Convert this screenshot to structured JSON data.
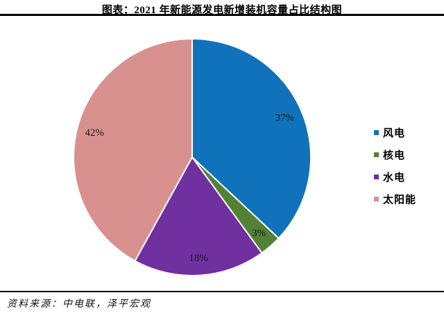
{
  "page": {
    "title": "图表：2021 年新能源发电新增装机容量占比结构图",
    "source": "资料来源：中电联，泽平宏观",
    "background": "#ffffff",
    "rule_color": "#000000"
  },
  "chart_data": {
    "type": "pie",
    "title": "图表：2021 年新能源发电新增装机容量占比结构图",
    "slices": [
      {
        "label": "风电",
        "value": 37,
        "percent_label": "37%",
        "color": "#1072BA"
      },
      {
        "label": "核电",
        "value": 3,
        "percent_label": "3%",
        "color": "#538135"
      },
      {
        "label": "水电",
        "value": 18,
        "percent_label": "18%",
        "color": "#7030A0"
      },
      {
        "label": "太阳能",
        "value": 42,
        "percent_label": "42%",
        "color": "#D9918F"
      }
    ],
    "start_angle_deg": 0,
    "direction": "clockwise",
    "data_labels": "percent",
    "legend_position": "right",
    "source_note": "资料来源：中电联，泽平宏观"
  }
}
